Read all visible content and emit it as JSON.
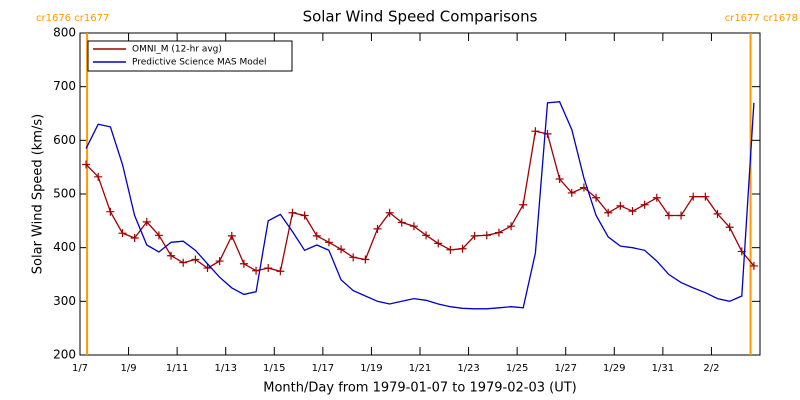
{
  "chart_data": {
    "type": "line",
    "title": "Solar Wind Speed Comparisons",
    "xlabel": "Month/Day from 1979-01-07 to 1979-02-03 (UT)",
    "ylabel": "Solar Wind Speed (km/s)",
    "x": [
      "1979-01-07T06:00",
      "1979-01-07T18:00",
      "1979-01-08T06:00",
      "1979-01-08T18:00",
      "1979-01-09T06:00",
      "1979-01-09T18:00",
      "1979-01-10T06:00",
      "1979-01-10T18:00",
      "1979-01-11T06:00",
      "1979-01-11T18:00",
      "1979-01-12T06:00",
      "1979-01-12T18:00",
      "1979-01-13T06:00",
      "1979-01-13T18:00",
      "1979-01-14T06:00",
      "1979-01-14T18:00",
      "1979-01-15T06:00",
      "1979-01-15T18:00",
      "1979-01-16T06:00",
      "1979-01-16T18:00",
      "1979-01-17T06:00",
      "1979-01-17T18:00",
      "1979-01-18T06:00",
      "1979-01-18T18:00",
      "1979-01-19T06:00",
      "1979-01-19T18:00",
      "1979-01-20T06:00",
      "1979-01-20T18:00",
      "1979-01-21T06:00",
      "1979-01-21T18:00",
      "1979-01-22T06:00",
      "1979-01-22T18:00",
      "1979-01-23T06:00",
      "1979-01-23T18:00",
      "1979-01-24T06:00",
      "1979-01-24T18:00",
      "1979-01-25T06:00",
      "1979-01-25T18:00",
      "1979-01-26T06:00",
      "1979-01-26T18:00",
      "1979-01-27T06:00",
      "1979-01-27T18:00",
      "1979-01-28T06:00",
      "1979-01-28T18:00",
      "1979-01-29T06:00",
      "1979-01-29T18:00",
      "1979-01-30T06:00",
      "1979-01-30T18:00",
      "1979-01-31T06:00",
      "1979-01-31T18:00",
      "1979-02-01T06:00",
      "1979-02-01T18:00",
      "1979-02-02T06:00",
      "1979-02-02T18:00",
      "1979-02-03T06:00",
      "1979-02-03T18:00"
    ],
    "series": [
      {
        "name": "OMNI_M (12-hr avg)",
        "color": "#a00000",
        "marker": "+",
        "values": [
          555,
          532,
          467,
          427,
          418,
          448,
          423,
          385,
          372,
          378,
          362,
          375,
          422,
          370,
          357,
          362,
          356,
          465,
          460,
          422,
          410,
          397,
          382,
          378,
          435,
          465,
          447,
          440,
          423,
          408,
          396,
          398,
          422,
          423,
          428,
          440,
          480,
          617,
          612,
          528,
          502,
          512,
          493,
          465,
          478,
          468,
          480,
          493,
          460,
          460,
          495,
          495,
          463,
          438,
          393,
          366
        ]
      },
      {
        "name": "Predictive Science MAS Model",
        "color": "#0000c8",
        "values": [
          585,
          630,
          625,
          555,
          460,
          405,
          392,
          410,
          412,
          395,
          370,
          345,
          325,
          313,
          318,
          450,
          462,
          430,
          395,
          405,
          395,
          340,
          320,
          310,
          300,
          295,
          300,
          305,
          302,
          295,
          290,
          287,
          286,
          286,
          288,
          290,
          288,
          390,
          670,
          672,
          620,
          530,
          460,
          420,
          403,
          400,
          395,
          375,
          350,
          335,
          325,
          316,
          305,
          300,
          310,
          670
        ]
      }
    ],
    "xlim": [
      "1979-01-07T00:00",
      "1979-02-04T00:00"
    ],
    "xticks": [
      {
        "value": "1979-01-07T00:00",
        "label": "1/7"
      },
      {
        "value": "1979-01-09T00:00",
        "label": "1/9"
      },
      {
        "value": "1979-01-11T00:00",
        "label": "1/11"
      },
      {
        "value": "1979-01-13T00:00",
        "label": "1/13"
      },
      {
        "value": "1979-01-15T00:00",
        "label": "1/15"
      },
      {
        "value": "1979-01-17T00:00",
        "label": "1/17"
      },
      {
        "value": "1979-01-19T00:00",
        "label": "1/19"
      },
      {
        "value": "1979-01-21T00:00",
        "label": "1/21"
      },
      {
        "value": "1979-01-23T00:00",
        "label": "1/23"
      },
      {
        "value": "1979-01-25T00:00",
        "label": "1/25"
      },
      {
        "value": "1979-01-27T00:00",
        "label": "1/27"
      },
      {
        "value": "1979-01-29T00:00",
        "label": "1/29"
      },
      {
        "value": "1979-01-31T00:00",
        "label": "1/31"
      },
      {
        "value": "1979-02-02T00:00",
        "label": "2/2"
      }
    ],
    "ylim": [
      200,
      800
    ],
    "yticks": [
      200,
      300,
      400,
      500,
      600,
      700,
      800
    ],
    "legend": "upper left",
    "annotations": [
      {
        "x": "1979-01-07T07:00",
        "label": "cr1676 cr1677",
        "color": "#ff9900",
        "side": "left"
      },
      {
        "x": "1979-02-03T14:40",
        "label": "cr1677 cr1678",
        "color": "#ff9900",
        "side": "right"
      }
    ]
  }
}
